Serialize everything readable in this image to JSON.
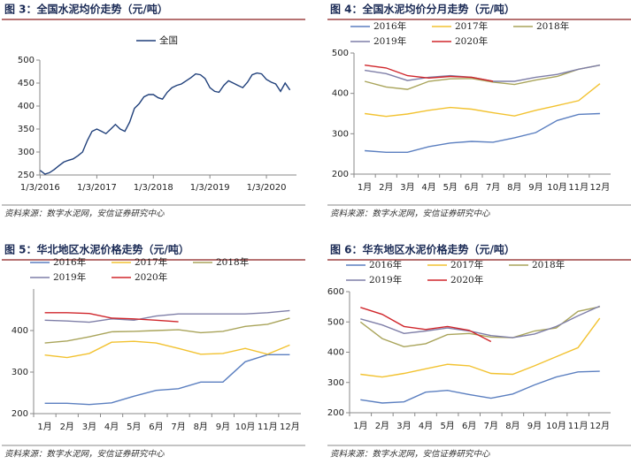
{
  "chart_data": [
    {
      "type": "line",
      "title": "图 3：全国水泥均价走势（元/吨）",
      "source": "资料来源：数字水泥网，安信证券研究中心",
      "x": [
        "2016-01-03",
        "2016-02-03",
        "2016-03-03",
        "2016-04-03",
        "2016-05-03",
        "2016-06-03",
        "2016-07-03",
        "2016-08-03",
        "2016-09-03",
        "2016-10-03",
        "2016-11-03",
        "2016-12-03",
        "2017-01-03",
        "2017-02-03",
        "2017-03-03",
        "2017-04-03",
        "2017-05-03",
        "2017-06-03",
        "2017-07-03",
        "2017-08-03",
        "2017-09-03",
        "2017-10-03",
        "2017-11-03",
        "2017-12-03",
        "2018-01-03",
        "2018-02-03",
        "2018-03-03",
        "2018-04-03",
        "2018-05-03",
        "2018-06-03",
        "2018-07-03",
        "2018-08-03",
        "2018-09-03",
        "2018-10-03",
        "2018-11-03",
        "2018-12-03",
        "2019-01-03",
        "2019-02-03",
        "2019-03-03",
        "2019-04-03",
        "2019-05-03",
        "2019-06-03",
        "2019-07-03",
        "2019-08-03",
        "2019-09-03",
        "2019-10-03",
        "2019-11-03",
        "2019-12-03",
        "2020-01-03",
        "2020-02-03",
        "2020-03-03",
        "2020-04-03",
        "2020-05-03",
        "2020-06-03"
      ],
      "series": [
        {
          "name": "全国",
          "color": "#1f3f7a",
          "values": [
            260,
            252,
            255,
            262,
            270,
            278,
            282,
            285,
            292,
            300,
            325,
            345,
            350,
            345,
            340,
            350,
            360,
            350,
            345,
            365,
            395,
            405,
            420,
            425,
            425,
            418,
            415,
            430,
            440,
            445,
            448,
            455,
            462,
            470,
            468,
            460,
            440,
            432,
            430,
            445,
            455,
            450,
            445,
            440,
            452,
            468,
            472,
            470,
            458,
            452,
            448,
            432,
            450,
            435
          ]
        }
      ],
      "xlim": [
        "2016-01-01",
        "2020-07-15"
      ],
      "xticks": [
        {
          "value": "2016-01-03",
          "label": "1/3/2016"
        },
        {
          "value": "2017-01-03",
          "label": "1/3/2017"
        },
        {
          "value": "2018-01-03",
          "label": "1/3/2018"
        },
        {
          "value": "2019-01-03",
          "label": "1/3/2019"
        },
        {
          "value": "2020-01-03",
          "label": "1/3/2020"
        }
      ],
      "ylim": [
        250,
        500
      ],
      "yticks": [
        250,
        300,
        350,
        400,
        450,
        500
      ],
      "grid": false
    },
    {
      "type": "line",
      "title": "图 4：全国水泥均价分月走势（元/吨）",
      "source": "资料来源：数字水泥网，安信证券研究中心",
      "categories": [
        "1月",
        "2月",
        "3月",
        "4月",
        "5月",
        "6月",
        "7月",
        "8月",
        "9月",
        "10月",
        "11月",
        "12月"
      ],
      "series": [
        {
          "name": "2016年",
          "color": "#5b7fc0",
          "values": [
            258,
            254,
            254,
            268,
            277,
            281,
            279,
            290,
            303,
            333,
            348,
            350
          ]
        },
        {
          "name": "2017年",
          "color": "#f2c230",
          "values": [
            350,
            343,
            349,
            358,
            365,
            361,
            352,
            344,
            358,
            370,
            382,
            424
          ]
        },
        {
          "name": "2018年",
          "color": "#a9a45a",
          "values": [
            430,
            416,
            410,
            430,
            436,
            437,
            428,
            422,
            433,
            442,
            460,
            470
          ]
        },
        {
          "name": "2019年",
          "color": "#7f7fa8",
          "values": [
            457,
            449,
            432,
            440,
            444,
            440,
            430,
            430,
            440,
            447,
            460,
            470
          ]
        },
        {
          "name": "2020年",
          "color": "#d0262b",
          "values": [
            470,
            463,
            444,
            438,
            442,
            440,
            430,
            null,
            null,
            null,
            null,
            null
          ]
        }
      ],
      "ylim": [
        200,
        500
      ],
      "yticks": [
        200,
        300,
        400,
        500
      ],
      "grid": false
    },
    {
      "type": "line",
      "title": "图 5：华北地区水泥价格走势（元/吨）",
      "source": "资料来源：数字水泥网，安信证券研究中心",
      "categories": [
        "1月",
        "2月",
        "3月",
        "4月",
        "5月",
        "6月",
        "7月",
        "8月",
        "9月",
        "10月",
        "11月",
        "12月"
      ],
      "series": [
        {
          "name": "2016年",
          "color": "#5b7fc0",
          "values": [
            225,
            225,
            222,
            226,
            242,
            256,
            260,
            276,
            276,
            325,
            342,
            342
          ]
        },
        {
          "name": "2017年",
          "color": "#f2c230",
          "values": [
            341,
            335,
            345,
            372,
            374,
            370,
            357,
            343,
            345,
            357,
            343,
            365
          ]
        },
        {
          "name": "2018年",
          "color": "#a9a45a",
          "values": [
            370,
            375,
            385,
            397,
            398,
            400,
            402,
            395,
            398,
            410,
            415,
            430
          ]
        },
        {
          "name": "2019年",
          "color": "#7f7fa8",
          "values": [
            425,
            423,
            420,
            428,
            425,
            435,
            440,
            440,
            440,
            440,
            443,
            448
          ]
        },
        {
          "name": "2020年",
          "color": "#d0262b",
          "values": [
            443,
            443,
            441,
            430,
            428,
            425,
            421,
            null,
            null,
            null,
            null,
            null
          ]
        }
      ],
      "ylim": [
        200,
        500
      ],
      "yticks": [
        200,
        300,
        400
      ],
      "grid": false
    },
    {
      "type": "line",
      "title": "图 6：华东地区水泥价格走势（元/吨）",
      "source": "资料来源：数字水泥网，安信证券研究中心",
      "categories": [
        "1月",
        "2月",
        "3月",
        "4月",
        "5月",
        "6月",
        "7月",
        "8月",
        "9月",
        "10月",
        "11月",
        "12月"
      ],
      "series": [
        {
          "name": "2016年",
          "color": "#5b7fc0",
          "values": [
            243,
            232,
            236,
            268,
            274,
            260,
            248,
            262,
            292,
            318,
            335,
            337
          ]
        },
        {
          "name": "2017年",
          "color": "#f2c230",
          "values": [
            327,
            318,
            330,
            345,
            360,
            355,
            330,
            327,
            355,
            385,
            415,
            512
          ]
        },
        {
          "name": "2018年",
          "color": "#a9a45a",
          "values": [
            500,
            445,
            418,
            428,
            458,
            462,
            450,
            448,
            470,
            480,
            535,
            550
          ]
        },
        {
          "name": "2019年",
          "color": "#7f7fa8",
          "values": [
            510,
            490,
            462,
            470,
            480,
            470,
            455,
            448,
            460,
            485,
            520,
            552
          ]
        },
        {
          "name": "2020年",
          "color": "#d0262b",
          "values": [
            548,
            525,
            485,
            475,
            485,
            472,
            435,
            null,
            null,
            null,
            null,
            null
          ]
        }
      ],
      "ylim": [
        200,
        600
      ],
      "yticks": [
        200,
        300,
        400,
        500,
        600
      ],
      "grid": false
    }
  ]
}
